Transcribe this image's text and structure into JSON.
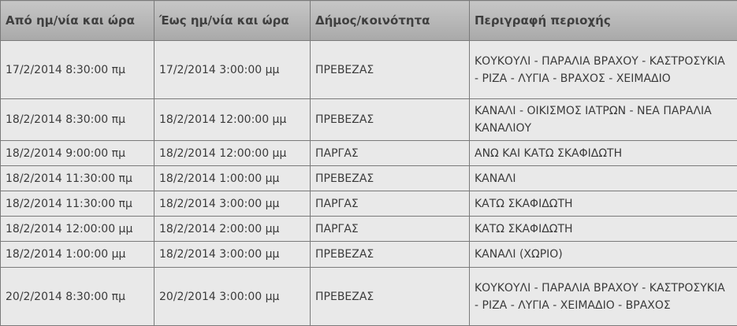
{
  "headers": [
    "Από ημ/νία και ώρα",
    "Έως ημ/νία και ώρα",
    "Δήμος/κοινότητα",
    "Περιγραφή περιοχής"
  ],
  "rows": [
    {
      "from": "17/2/2014 8:30:00 πμ",
      "to": "17/2/2014 3:00:00 μμ",
      "municipality": "ΠΡΕΒΕΖΑΣ",
      "area": "ΚΟΥΚΟΥΛΙ - ΠΑΡΑΛΙΑ ΒΡΑΧΟΥ - ΚΑΣΤΡΟΣΥΚΙΑ - ΡΙΖΑ - ΛΥΓΙΑ - ΒΡΑΧΟΣ - ΧΕΙΜΑΔΙΟ"
    },
    {
      "from": "18/2/2014 8:30:00 πμ",
      "to": "18/2/2014 12:00:00 μμ",
      "municipality": "ΠΡΕΒΕΖΑΣ",
      "area": "ΚΑΝΑΛΙ - ΟΙΚΙΣΜΟΣ ΙΑΤΡΩΝ - ΝΕΑ ΠΑΡΑΛΙΑ ΚΑΝΑΛΙΟΥ"
    },
    {
      "from": "18/2/2014 9:00:00 πμ",
      "to": "18/2/2014 12:00:00 μμ",
      "municipality": "ΠΑΡΓΑΣ",
      "area": "ΑΝΩ ΚΑΙ ΚΑΤΩ ΣΚΑΦΙΔΩΤΗ"
    },
    {
      "from": "18/2/2014 11:30:00 πμ",
      "to": "18/2/2014 1:00:00 μμ",
      "municipality": "ΠΡΕΒΕΖΑΣ",
      "area": "ΚΑΝΑΛΙ"
    },
    {
      "from": "18/2/2014 11:30:00 πμ",
      "to": "18/2/2014 3:00:00 μμ",
      "municipality": "ΠΑΡΓΑΣ",
      "area": "ΚΑΤΩ ΣΚΑΦΙΔΩΤΗ"
    },
    {
      "from": "18/2/2014 12:00:00 μμ",
      "to": "18/2/2014 2:00:00 μμ",
      "municipality": "ΠΑΡΓΑΣ",
      "area": "ΚΑΤΩ ΣΚΑΦΙΔΩΤΗ"
    },
    {
      "from": "18/2/2014 1:00:00 μμ",
      "to": "18/2/2014 3:00:00 μμ",
      "municipality": "ΠΡΕΒΕΖΑΣ",
      "area": "ΚΑΝΑΛΙ (ΧΩΡΙΟ)"
    },
    {
      "from": "20/2/2014 8:30:00 πμ",
      "to": "20/2/2014 3:00:00 μμ",
      "municipality": "ΠΡΕΒΕΖΑΣ",
      "area": "ΚΟΥΚΟΥΛΙ - ΠΑΡΑΛΙΑ ΒΡΑΧΟΥ - ΚΑΣΤΡΟΣΥΚΙΑ - ΡΙΖΑ - ΛΥΓΙΑ - ΧΕΙΜΑΔΙΟ - ΒΡΑΧΟΣ"
    }
  ]
}
